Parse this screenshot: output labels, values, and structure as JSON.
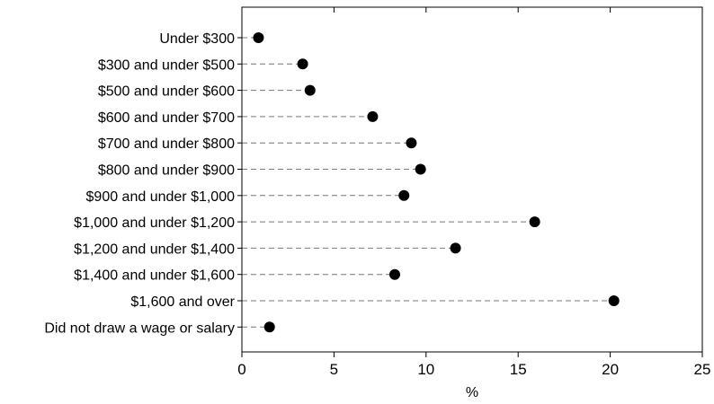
{
  "chart_data": {
    "type": "scatter",
    "orientation": "horizontal",
    "categories": [
      "Under $300",
      "$300 and under $500",
      "$500 and under $600",
      "$600 and under $700",
      "$700 and under $800",
      "$800 and under $900",
      "$900 and under $1,000",
      "$1,000 and under $1,200",
      "$1,200 and under $1,400",
      "$1,400 and under $1,600",
      "$1,600 and over",
      "Did not draw a wage or salary"
    ],
    "values": [
      0.9,
      3.3,
      3.7,
      7.1,
      9.2,
      9.7,
      8.8,
      15.9,
      11.6,
      8.3,
      20.2,
      1.5
    ],
    "xlabel": "%",
    "xlim": [
      0,
      25
    ],
    "xticks": [
      "0",
      "5",
      "10",
      "15",
      "20",
      "25"
    ],
    "grid": false,
    "dashed_leaders": true,
    "marker_color": "#000000"
  }
}
